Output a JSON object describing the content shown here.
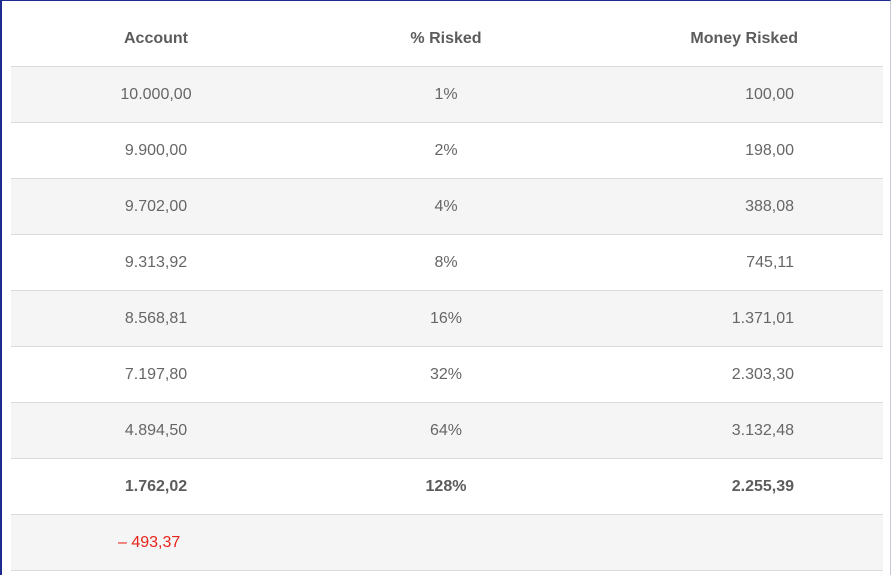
{
  "table": {
    "headers": {
      "account": "Account",
      "percent_risked": "% Risked",
      "money_risked": "Money Risked"
    },
    "rows": [
      {
        "account": "10.000,00",
        "percent_risked": "1%",
        "money_risked": "100,00"
      },
      {
        "account": "9.900,00",
        "percent_risked": "2%",
        "money_risked": "198,00"
      },
      {
        "account": "9.702,00",
        "percent_risked": "4%",
        "money_risked": "388,08"
      },
      {
        "account": "9.313,92",
        "percent_risked": "8%",
        "money_risked": "745,11"
      },
      {
        "account": "8.568,81",
        "percent_risked": "16%",
        "money_risked": "1.371,01"
      },
      {
        "account": "7.197,80",
        "percent_risked": "32%",
        "money_risked": "2.303,30"
      },
      {
        "account": "4.894,50",
        "percent_risked": "64%",
        "money_risked": "3.132,48"
      },
      {
        "account": "1.762,02",
        "percent_risked": "128%",
        "money_risked": "2.255,39"
      }
    ],
    "final_balance": "– 493,37"
  },
  "colors": {
    "text": "#666666",
    "negative": "#e8231a",
    "stripe": "#f5f5f5",
    "divider": "#dcdcdc"
  }
}
